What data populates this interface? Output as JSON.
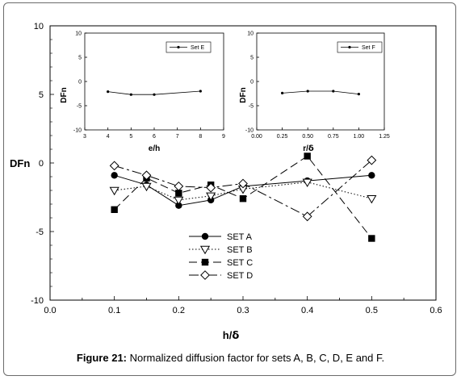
{
  "caption": {
    "prefix": "Figure 21:",
    "text": " Normalized diffusion factor for sets A, B, C, D, E and F."
  },
  "chart_data": [
    {
      "id": "main",
      "type": "line",
      "xlabel_main": "h/",
      "xlabel_symbol": "δ",
      "ylabel": "DFn",
      "xlim": [
        0.0,
        0.6
      ],
      "ylim": [
        -10,
        10
      ],
      "xticks": [
        "0.0",
        "0.1",
        "0.2",
        "0.3",
        "0.4",
        "0.5",
        "0.6"
      ],
      "yticks": [
        "10",
        "5",
        "0",
        "-5",
        "-10"
      ],
      "legend_position": "lower-center",
      "series": [
        {
          "name": "SET A",
          "style": "solid",
          "marker": "circle",
          "color": "#000000",
          "x": [
            0.1,
            0.15,
            0.2,
            0.25,
            0.3,
            0.4,
            0.5
          ],
          "y": [
            -0.9,
            -1.6,
            -3.1,
            -2.7,
            -1.7,
            -1.3,
            -0.9
          ]
        },
        {
          "name": "SET B",
          "style": "dotted",
          "marker": "triangle-down",
          "color": "#000000",
          "x": [
            0.1,
            0.15,
            0.2,
            0.25,
            0.3,
            0.4,
            0.5
          ],
          "y": [
            -2.0,
            -1.7,
            -2.7,
            -2.4,
            -1.9,
            -1.4,
            -2.6
          ]
        },
        {
          "name": "SET C",
          "style": "long-dash",
          "marker": "square",
          "color": "#000000",
          "x": [
            0.1,
            0.15,
            0.2,
            0.25,
            0.3,
            0.4,
            0.5
          ],
          "y": [
            -3.4,
            -1.1,
            -2.2,
            -1.6,
            -2.6,
            0.5,
            -5.5
          ]
        },
        {
          "name": "SET D",
          "style": "dash-dot",
          "marker": "diamond",
          "color": "#000000",
          "x": [
            0.1,
            0.15,
            0.2,
            0.25,
            0.3,
            0.4,
            0.5
          ],
          "y": [
            -0.2,
            -0.9,
            -1.7,
            -1.8,
            -1.5,
            -3.9,
            0.2
          ]
        }
      ]
    },
    {
      "id": "inset-e",
      "type": "line",
      "xlabel": "e/h",
      "ylabel": "DFn",
      "xlim": [
        3,
        9
      ],
      "ylim": [
        -10,
        10
      ],
      "xticks": [
        "3",
        "4",
        "5",
        "6",
        "7",
        "8",
        "9"
      ],
      "yticks": [
        "10",
        "5",
        "0",
        "-5",
        "-10"
      ],
      "legend_position": "top-right",
      "series": [
        {
          "name": "Set E",
          "style": "solid",
          "marker": "small-circle",
          "color": "#000000",
          "x": [
            4,
            5,
            6,
            8
          ],
          "y": [
            -2.1,
            -2.7,
            -2.7,
            -2.0
          ]
        }
      ]
    },
    {
      "id": "inset-f",
      "type": "line",
      "xlabel_main": "r/",
      "xlabel_symbol": "δ",
      "ylabel": "DFn",
      "xlim": [
        0.0,
        1.25
      ],
      "ylim": [
        -10,
        10
      ],
      "xticks": [
        "0.00",
        "0.25",
        "0.50",
        "0.75",
        "1.00",
        "1.25"
      ],
      "yticks": [
        "10",
        "5",
        "0",
        "-5",
        "-10"
      ],
      "legend_position": "top-right",
      "series": [
        {
          "name": "Set F",
          "style": "solid",
          "marker": "small-circle",
          "color": "#000000",
          "x": [
            0.25,
            0.5,
            0.75,
            1.0
          ],
          "y": [
            -2.4,
            -2.0,
            -2.0,
            -2.6
          ]
        }
      ]
    }
  ]
}
